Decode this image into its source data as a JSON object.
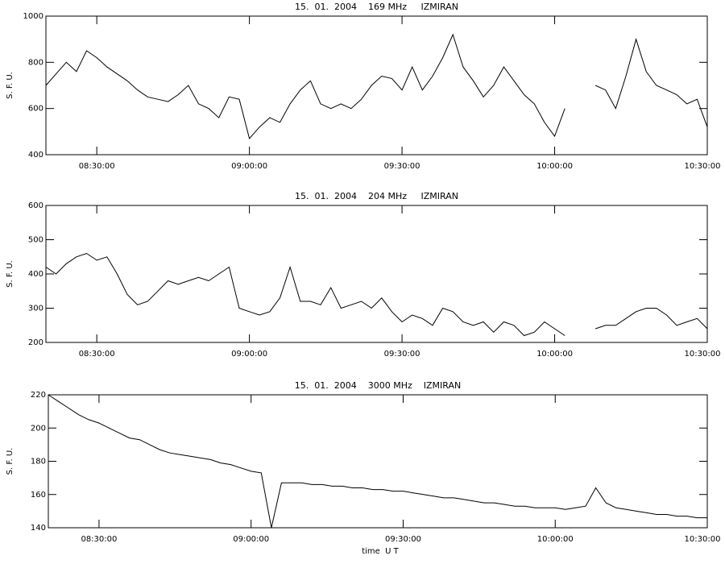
{
  "chart_data": [
    {
      "type": "line",
      "title": "15.  01.  2004    169 MHz     IZMIRAN",
      "y_label": "S. F. U.",
      "color": "#000000",
      "x": [
        "08:20:00",
        "08:22:00",
        "08:24:00",
        "08:26:00",
        "08:28:00",
        "08:30:00",
        "08:32:00",
        "08:34:00",
        "08:36:00",
        "08:38:00",
        "08:40:00",
        "08:42:00",
        "08:44:00",
        "08:46:00",
        "08:48:00",
        "08:50:00",
        "08:52:00",
        "08:54:00",
        "08:56:00",
        "08:58:00",
        "09:00:00",
        "09:02:00",
        "09:04:00",
        "09:06:00",
        "09:08:00",
        "09:10:00",
        "09:12:00",
        "09:14:00",
        "09:16:00",
        "09:18:00",
        "09:20:00",
        "09:22:00",
        "09:24:00",
        "09:26:00",
        "09:28:00",
        "09:30:00",
        "09:32:00",
        "09:34:00",
        "09:36:00",
        "09:38:00",
        "09:40:00",
        "09:42:00",
        "09:44:00",
        "09:46:00",
        "09:48:00",
        "09:50:00",
        "09:52:00",
        "09:54:00",
        "09:56:00",
        "09:58:00",
        "10:00:00",
        "10:02:00",
        "10:04:00",
        "10:06:00",
        "10:08:00",
        "10:10:00",
        "10:12:00",
        "10:14:00",
        "10:16:00",
        "10:18:00",
        "10:20:00",
        "10:22:00",
        "10:24:00",
        "10:26:00",
        "10:28:00",
        "10:30:00"
      ],
      "values": [
        700,
        750,
        800,
        760,
        850,
        820,
        780,
        750,
        720,
        680,
        650,
        640,
        630,
        660,
        700,
        620,
        600,
        560,
        650,
        640,
        470,
        520,
        560,
        540,
        620,
        680,
        720,
        620,
        600,
        620,
        600,
        640,
        700,
        740,
        730,
        680,
        780,
        680,
        740,
        820,
        920,
        780,
        720,
        650,
        700,
        780,
        720,
        660,
        620,
        540,
        480,
        600,
        null,
        null,
        700,
        680,
        600,
        740,
        900,
        760,
        700,
        680,
        660,
        620,
        640,
        520
      ],
      "xlim": [
        "08:20:00",
        "10:30:00"
      ],
      "xticks": [
        "08:30:00",
        "09:00:00",
        "09:30:00",
        "10:00:00",
        "10:30:00"
      ],
      "ylim": [
        400,
        1000
      ],
      "yticks": [
        400,
        600,
        800,
        1000
      ]
    },
    {
      "type": "line",
      "title": "15.  01.  2004    204 MHz     IZMIRAN",
      "y_label": "S. F. U.",
      "color": "#000000",
      "x": [
        "08:20:00",
        "08:22:00",
        "08:24:00",
        "08:26:00",
        "08:28:00",
        "08:30:00",
        "08:32:00",
        "08:34:00",
        "08:36:00",
        "08:38:00",
        "08:40:00",
        "08:42:00",
        "08:44:00",
        "08:46:00",
        "08:48:00",
        "08:50:00",
        "08:52:00",
        "08:54:00",
        "08:56:00",
        "08:58:00",
        "09:00:00",
        "09:02:00",
        "09:04:00",
        "09:06:00",
        "09:08:00",
        "09:10:00",
        "09:12:00",
        "09:14:00",
        "09:16:00",
        "09:18:00",
        "09:20:00",
        "09:22:00",
        "09:24:00",
        "09:26:00",
        "09:28:00",
        "09:30:00",
        "09:32:00",
        "09:34:00",
        "09:36:00",
        "09:38:00",
        "09:40:00",
        "09:42:00",
        "09:44:00",
        "09:46:00",
        "09:48:00",
        "09:50:00",
        "09:52:00",
        "09:54:00",
        "09:56:00",
        "09:58:00",
        "10:00:00",
        "10:02:00",
        "10:04:00",
        "10:06:00",
        "10:08:00",
        "10:10:00",
        "10:12:00",
        "10:14:00",
        "10:16:00",
        "10:18:00",
        "10:20:00",
        "10:22:00",
        "10:24:00",
        "10:26:00",
        "10:28:00",
        "10:30:00"
      ],
      "values": [
        420,
        400,
        430,
        450,
        460,
        440,
        450,
        400,
        340,
        310,
        320,
        350,
        380,
        370,
        380,
        390,
        380,
        400,
        420,
        300,
        290,
        280,
        290,
        330,
        420,
        320,
        320,
        310,
        360,
        300,
        310,
        320,
        300,
        330,
        290,
        260,
        280,
        270,
        250,
        300,
        290,
        260,
        250,
        260,
        230,
        260,
        250,
        220,
        230,
        260,
        240,
        220,
        null,
        null,
        240,
        250,
        250,
        270,
        290,
        300,
        300,
        280,
        250,
        260,
        270,
        240
      ],
      "xlim": [
        "08:20:00",
        "10:30:00"
      ],
      "xticks": [
        "08:30:00",
        "09:00:00",
        "09:30:00",
        "10:00:00",
        "10:30:00"
      ],
      "ylim": [
        200,
        600
      ],
      "yticks": [
        200,
        300,
        400,
        500,
        600
      ]
    },
    {
      "type": "line",
      "title": "15.  01.  2004    3000 MHz    IZMIRAN",
      "y_label": "S. F. U.",
      "x_label": "time  U T",
      "color": "#000000",
      "x": [
        "08:20:00",
        "08:22:00",
        "08:24:00",
        "08:26:00",
        "08:28:00",
        "08:30:00",
        "08:32:00",
        "08:34:00",
        "08:36:00",
        "08:38:00",
        "08:40:00",
        "08:42:00",
        "08:44:00",
        "08:46:00",
        "08:48:00",
        "08:50:00",
        "08:52:00",
        "08:54:00",
        "08:56:00",
        "08:58:00",
        "09:00:00",
        "09:02:00",
        "09:04:00",
        "09:06:00",
        "09:08:00",
        "09:10:00",
        "09:12:00",
        "09:14:00",
        "09:16:00",
        "09:18:00",
        "09:20:00",
        "09:22:00",
        "09:24:00",
        "09:26:00",
        "09:28:00",
        "09:30:00",
        "09:32:00",
        "09:34:00",
        "09:36:00",
        "09:38:00",
        "09:40:00",
        "09:42:00",
        "09:44:00",
        "09:46:00",
        "09:48:00",
        "09:50:00",
        "09:52:00",
        "09:54:00",
        "09:56:00",
        "09:58:00",
        "10:00:00",
        "10:02:00",
        "10:04:00",
        "10:06:00",
        "10:08:00",
        "10:10:00",
        "10:12:00",
        "10:14:00",
        "10:16:00",
        "10:18:00",
        "10:20:00",
        "10:22:00",
        "10:24:00",
        "10:26:00",
        "10:28:00",
        "10:30:00"
      ],
      "values": [
        220,
        216,
        212,
        208,
        205,
        203,
        200,
        197,
        194,
        193,
        190,
        187,
        185,
        184,
        183,
        182,
        181,
        179,
        178,
        176,
        174,
        173,
        140,
        167,
        167,
        167,
        166,
        166,
        165,
        165,
        164,
        164,
        163,
        163,
        162,
        162,
        161,
        160,
        159,
        158,
        158,
        157,
        156,
        155,
        155,
        154,
        153,
        153,
        152,
        152,
        152,
        151,
        152,
        153,
        164,
        155,
        152,
        151,
        150,
        149,
        148,
        148,
        147,
        147,
        146,
        146
      ],
      "xlim": [
        "08:20:00",
        "10:30:00"
      ],
      "xticks": [
        "08:30:00",
        "09:00:00",
        "09:30:00",
        "10:00:00",
        "10:30:00"
      ],
      "ylim": [
        140,
        220
      ],
      "yticks": [
        140,
        160,
        180,
        200,
        220
      ]
    }
  ]
}
